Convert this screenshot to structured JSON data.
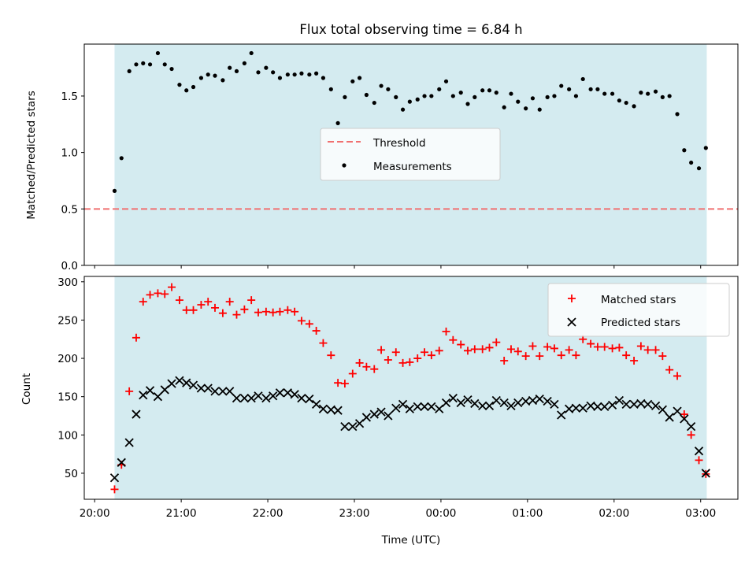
{
  "chart_data": {
    "type": "scatter",
    "title": "Flux total observing time = 6.84 h",
    "xlabel": "Time (UTC)",
    "x_tick_labels": [
      "20:00",
      "21:00",
      "22:00",
      "23:00",
      "00:00",
      "01:00",
      "02:00",
      "03:00"
    ],
    "x_ticks_hours": [
      0,
      1,
      2,
      3,
      4,
      5,
      6,
      7
    ],
    "xlim_hours": [
      -0.12,
      7.43
    ],
    "observing_window_hours": [
      0.23,
      7.07
    ],
    "panels": [
      {
        "ylabel": "Matched/Predicted stars",
        "ylim": [
          0,
          1.96
        ],
        "y_ticks": [
          0.0,
          0.5,
          1.0,
          1.5
        ],
        "y_tick_labels": [
          "0.0",
          "0.5",
          "1.0",
          "1.5"
        ],
        "legend": "center",
        "threshold": 0.5,
        "series": [
          {
            "name": "Threshold",
            "style": "dashed-line",
            "color": "#f07070"
          },
          {
            "name": "Measurements",
            "style": "dot",
            "color": "#000000"
          }
        ],
        "measurements": [
          [
            0.23,
            0.66
          ],
          [
            0.31,
            0.95
          ],
          [
            0.4,
            1.72
          ],
          [
            0.48,
            1.78
          ],
          [
            0.56,
            1.79
          ],
          [
            0.64,
            1.78
          ],
          [
            0.73,
            1.88
          ],
          [
            0.81,
            1.78
          ],
          [
            0.89,
            1.74
          ],
          [
            0.98,
            1.6
          ],
          [
            1.06,
            1.55
          ],
          [
            1.14,
            1.58
          ],
          [
            1.23,
            1.66
          ],
          [
            1.31,
            1.69
          ],
          [
            1.39,
            1.68
          ],
          [
            1.48,
            1.64
          ],
          [
            1.56,
            1.75
          ],
          [
            1.64,
            1.72
          ],
          [
            1.73,
            1.79
          ],
          [
            1.81,
            1.88
          ],
          [
            1.89,
            1.71
          ],
          [
            1.98,
            1.75
          ],
          [
            2.06,
            1.71
          ],
          [
            2.14,
            1.66
          ],
          [
            2.23,
            1.69
          ],
          [
            2.31,
            1.69
          ],
          [
            2.39,
            1.7
          ],
          [
            2.48,
            1.69
          ],
          [
            2.56,
            1.7
          ],
          [
            2.64,
            1.66
          ],
          [
            2.73,
            1.56
          ],
          [
            2.81,
            1.26
          ],
          [
            2.89,
            1.49
          ],
          [
            2.98,
            1.63
          ],
          [
            3.06,
            1.66
          ],
          [
            3.14,
            1.51
          ],
          [
            3.23,
            1.44
          ],
          [
            3.31,
            1.59
          ],
          [
            3.39,
            1.56
          ],
          [
            3.48,
            1.49
          ],
          [
            3.56,
            1.38
          ],
          [
            3.64,
            1.45
          ],
          [
            3.73,
            1.47
          ],
          [
            3.81,
            1.5
          ],
          [
            3.89,
            1.5
          ],
          [
            3.98,
            1.56
          ],
          [
            4.06,
            1.63
          ],
          [
            4.14,
            1.5
          ],
          [
            4.23,
            1.53
          ],
          [
            4.31,
            1.43
          ],
          [
            4.39,
            1.49
          ],
          [
            4.48,
            1.55
          ],
          [
            4.56,
            1.55
          ],
          [
            4.64,
            1.53
          ],
          [
            4.73,
            1.4
          ],
          [
            4.81,
            1.52
          ],
          [
            4.89,
            1.45
          ],
          [
            4.98,
            1.39
          ],
          [
            5.06,
            1.48
          ],
          [
            5.14,
            1.38
          ],
          [
            5.23,
            1.49
          ],
          [
            5.31,
            1.5
          ],
          [
            5.39,
            1.59
          ],
          [
            5.48,
            1.56
          ],
          [
            5.56,
            1.5
          ],
          [
            5.64,
            1.65
          ],
          [
            5.73,
            1.56
          ],
          [
            5.81,
            1.56
          ],
          [
            5.89,
            1.52
          ],
          [
            5.98,
            1.52
          ],
          [
            6.06,
            1.46
          ],
          [
            6.14,
            1.44
          ],
          [
            6.23,
            1.41
          ],
          [
            6.31,
            1.53
          ],
          [
            6.39,
            1.52
          ],
          [
            6.48,
            1.54
          ],
          [
            6.56,
            1.49
          ],
          [
            6.64,
            1.5
          ],
          [
            6.73,
            1.34
          ],
          [
            6.81,
            1.02
          ],
          [
            6.89,
            0.91
          ],
          [
            6.98,
            0.86
          ],
          [
            7.06,
            1.04
          ]
        ]
      },
      {
        "ylabel": "Count",
        "ylim": [
          16,
          307
        ],
        "y_ticks": [
          50,
          100,
          150,
          200,
          250,
          300
        ],
        "y_tick_labels": [
          "50",
          "100",
          "150",
          "200",
          "250",
          "300"
        ],
        "legend": "top-right",
        "series": [
          {
            "name": "Matched stars",
            "marker": "plus",
            "color": "#ff0000",
            "points": [
              [
                0.23,
                29
              ],
              [
                0.31,
                61
              ],
              [
                0.4,
                157
              ],
              [
                0.48,
                227
              ],
              [
                0.56,
                274
              ],
              [
                0.64,
                283
              ],
              [
                0.73,
                285
              ],
              [
                0.81,
                284
              ],
              [
                0.89,
                293
              ],
              [
                0.98,
                276
              ],
              [
                1.06,
                263
              ],
              [
                1.14,
                263
              ],
              [
                1.23,
                270
              ],
              [
                1.31,
                274
              ],
              [
                1.39,
                266
              ],
              [
                1.48,
                259
              ],
              [
                1.56,
                274
              ],
              [
                1.64,
                257
              ],
              [
                1.73,
                264
              ],
              [
                1.81,
                276
              ],
              [
                1.89,
                260
              ],
              [
                1.98,
                261
              ],
              [
                2.06,
                260
              ],
              [
                2.14,
                261
              ],
              [
                2.23,
                263
              ],
              [
                2.31,
                261
              ],
              [
                2.39,
                249
              ],
              [
                2.48,
                245
              ],
              [
                2.56,
                236
              ],
              [
                2.64,
                220
              ],
              [
                2.73,
                204
              ],
              [
                2.81,
                168
              ],
              [
                2.89,
                167
              ],
              [
                2.98,
                180
              ],
              [
                3.06,
                194
              ],
              [
                3.14,
                189
              ],
              [
                3.23,
                186
              ],
              [
                3.31,
                211
              ],
              [
                3.39,
                198
              ],
              [
                3.48,
                208
              ],
              [
                3.56,
                194
              ],
              [
                3.64,
                195
              ],
              [
                3.73,
                200
              ],
              [
                3.81,
                208
              ],
              [
                3.89,
                204
              ],
              [
                3.98,
                210
              ],
              [
                4.06,
                235
              ],
              [
                4.14,
                224
              ],
              [
                4.23,
                218
              ],
              [
                4.31,
                210
              ],
              [
                4.39,
                212
              ],
              [
                4.48,
                212
              ],
              [
                4.56,
                214
              ],
              [
                4.64,
                221
              ],
              [
                4.73,
                197
              ],
              [
                4.81,
                212
              ],
              [
                4.89,
                209
              ],
              [
                4.98,
                203
              ],
              [
                5.06,
                216
              ],
              [
                5.14,
                203
              ],
              [
                5.23,
                215
              ],
              [
                5.31,
                213
              ],
              [
                5.39,
                204
              ],
              [
                5.48,
                211
              ],
              [
                5.56,
                204
              ],
              [
                5.64,
                225
              ],
              [
                5.73,
                219
              ],
              [
                5.81,
                215
              ],
              [
                5.89,
                215
              ],
              [
                5.98,
                213
              ],
              [
                6.06,
                214
              ],
              [
                6.14,
                204
              ],
              [
                6.23,
                197
              ],
              [
                6.31,
                216
              ],
              [
                6.39,
                211
              ],
              [
                6.48,
                211
              ],
              [
                6.56,
                203
              ],
              [
                6.64,
                185
              ],
              [
                6.73,
                177
              ],
              [
                6.81,
                127
              ],
              [
                6.89,
                100
              ],
              [
                6.98,
                67
              ],
              [
                7.06,
                49
              ]
            ]
          },
          {
            "name": "Predicted stars",
            "marker": "x",
            "color": "#000000",
            "points": [
              [
                0.23,
                44
              ],
              [
                0.31,
                64
              ],
              [
                0.4,
                90
              ],
              [
                0.48,
                127
              ],
              [
                0.56,
                152
              ],
              [
                0.64,
                158
              ],
              [
                0.73,
                150
              ],
              [
                0.81,
                159
              ],
              [
                0.89,
                167
              ],
              [
                0.98,
                171
              ],
              [
                1.06,
                168
              ],
              [
                1.14,
                165
              ],
              [
                1.23,
                161
              ],
              [
                1.31,
                161
              ],
              [
                1.39,
                157
              ],
              [
                1.48,
                157
              ],
              [
                1.56,
                157
              ],
              [
                1.64,
                148
              ],
              [
                1.73,
                148
              ],
              [
                1.81,
                148
              ],
              [
                1.89,
                151
              ],
              [
                1.98,
                148
              ],
              [
                2.06,
                151
              ],
              [
                2.14,
                155
              ],
              [
                2.23,
                155
              ],
              [
                2.31,
                153
              ],
              [
                2.39,
                148
              ],
              [
                2.48,
                147
              ],
              [
                2.56,
                140
              ],
              [
                2.64,
                134
              ],
              [
                2.73,
                133
              ],
              [
                2.81,
                132
              ],
              [
                2.89,
                111
              ],
              [
                2.98,
                111
              ],
              [
                3.06,
                115
              ],
              [
                3.14,
                123
              ],
              [
                3.23,
                127
              ],
              [
                3.31,
                130
              ],
              [
                3.39,
                125
              ],
              [
                3.48,
                135
              ],
              [
                3.56,
                140
              ],
              [
                3.64,
                134
              ],
              [
                3.73,
                137
              ],
              [
                3.81,
                137
              ],
              [
                3.89,
                137
              ],
              [
                3.98,
                134
              ],
              [
                4.06,
                142
              ],
              [
                4.14,
                148
              ],
              [
                4.23,
                142
              ],
              [
                4.31,
                146
              ],
              [
                4.39,
                141
              ],
              [
                4.48,
                138
              ],
              [
                4.56,
                138
              ],
              [
                4.64,
                145
              ],
              [
                4.73,
                142
              ],
              [
                4.81,
                138
              ],
              [
                4.89,
                142
              ],
              [
                4.98,
                144
              ],
              [
                5.06,
                145
              ],
              [
                5.14,
                147
              ],
              [
                5.23,
                144
              ],
              [
                5.31,
                140
              ],
              [
                5.39,
                126
              ],
              [
                5.48,
                134
              ],
              [
                5.56,
                135
              ],
              [
                5.64,
                135
              ],
              [
                5.73,
                138
              ],
              [
                5.81,
                137
              ],
              [
                5.89,
                137
              ],
              [
                5.98,
                139
              ],
              [
                6.06,
                145
              ],
              [
                6.14,
                140
              ],
              [
                6.23,
                140
              ],
              [
                6.31,
                141
              ],
              [
                6.39,
                140
              ],
              [
                6.48,
                138
              ],
              [
                6.56,
                133
              ],
              [
                6.64,
                123
              ],
              [
                6.73,
                131
              ],
              [
                6.81,
                121
              ],
              [
                6.89,
                111
              ],
              [
                6.98,
                79
              ],
              [
                7.06,
                50
              ]
            ]
          }
        ]
      }
    ]
  },
  "colors": {
    "observing_window": "#d4ebf0",
    "threshold": "#f07070",
    "matched": "#ff0000",
    "predicted": "#000000",
    "measurement": "#000000"
  }
}
